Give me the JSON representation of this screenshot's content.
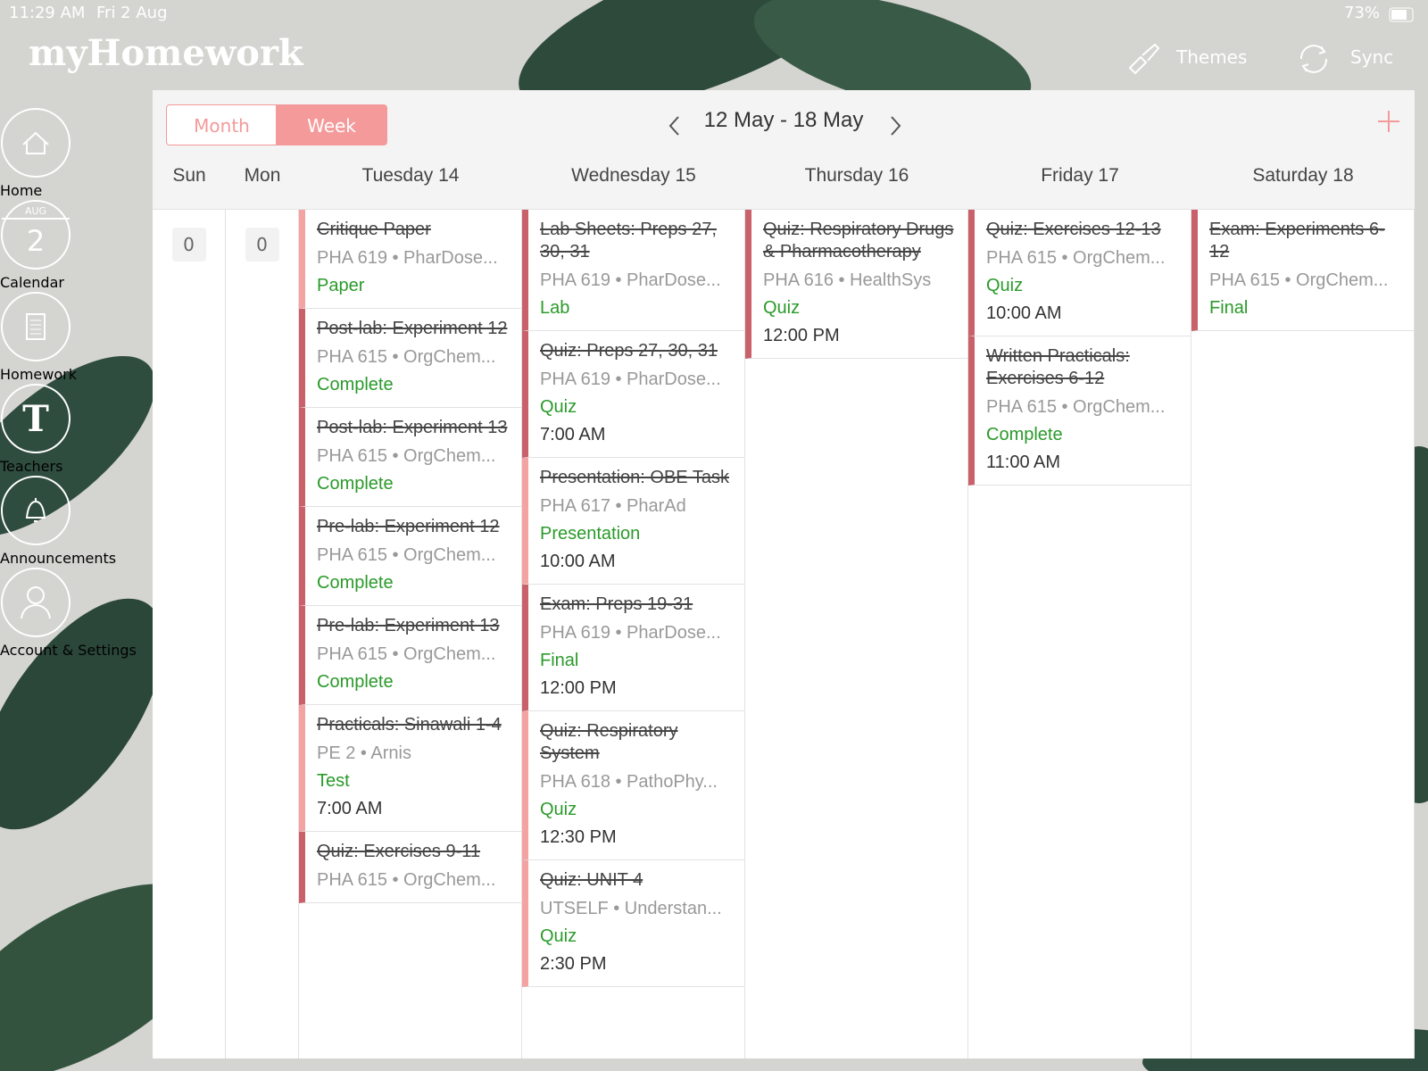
{
  "status_bar": {
    "time": "11:29 AM",
    "date": "Fri 2 Aug",
    "battery": "73%"
  },
  "header": {
    "title": "myHomework",
    "actions": [
      "Themes",
      "Sync"
    ]
  },
  "sidebar": [
    {
      "label": "Home",
      "icon": "home"
    },
    {
      "label": "Calendar",
      "icon": "calendar",
      "icon_month": "AUG",
      "icon_day": "2"
    },
    {
      "label": "Homework",
      "icon": "homework"
    },
    {
      "label": "Teachers",
      "icon": "teachers"
    },
    {
      "label": "Announcements",
      "icon": "bell"
    },
    {
      "label": "Account & Settings",
      "icon": "account"
    }
  ],
  "calendar": {
    "view_tabs": [
      "Month",
      "Week"
    ],
    "active_view": 1,
    "range": "12 May - 18 May",
    "days": [
      {
        "name": "Sun",
        "count": 0
      },
      {
        "name": "Mon",
        "count": 0
      },
      {
        "name": "Tuesday 14",
        "items": [
          {
            "title": "Critique Paper",
            "course": "PHA 619 • PharDose...",
            "type": "Paper",
            "color": "#f4a3a3"
          },
          {
            "title": "Post-lab: Experiment 12",
            "course": "PHA 615 • OrgChem...",
            "type": "Complete",
            "color": "#c9606a"
          },
          {
            "title": "Post-lab: Experiment 13",
            "course": "PHA 615 • OrgChem...",
            "type": "Complete",
            "color": "#c9606a"
          },
          {
            "title": "Pre-lab: Experiment 12",
            "course": "PHA 615 • OrgChem...",
            "type": "Complete",
            "color": "#c9606a"
          },
          {
            "title": "Pre-lab: Experiment 13",
            "course": "PHA 615 • OrgChem...",
            "type": "Complete",
            "color": "#c9606a"
          },
          {
            "title": "Practicals: Sinawali 1-4",
            "course": "PE 2 • Arnis",
            "type": "Test",
            "time": "7:00 AM",
            "color": "#f4a3a3"
          },
          {
            "title": "Quiz: Exercises 9-11",
            "course": "PHA 615 • OrgChem...",
            "color": "#c9606a"
          }
        ]
      },
      {
        "name": "Wednesday 15",
        "items": [
          {
            "title": "Lab Sheets: Preps 27, 30, 31",
            "course": "PHA 619 • PharDose...",
            "type": "Lab",
            "color": "#c9606a"
          },
          {
            "title": "Quiz: Preps 27, 30, 31",
            "course": "PHA 619 • PharDose...",
            "type": "Quiz",
            "time": "7:00 AM",
            "color": "#c9606a"
          },
          {
            "title": "Presentation: OBE Task",
            "course": "PHA 617 • PharAd",
            "type": "Presentation",
            "time": "10:00 AM",
            "color": "#f4a3a3"
          },
          {
            "title": "Exam: Preps 19-31",
            "course": "PHA 619 • PharDose...",
            "type": "Final",
            "time": "12:00 PM",
            "color": "#c9606a"
          },
          {
            "title": "Quiz: Respiratory System",
            "course": "PHA 618 • PathoPhy...",
            "type": "Quiz",
            "time": "12:30 PM",
            "color": "#f4a3a3"
          },
          {
            "title": "Quiz: UNIT 4",
            "course": "UTSELF • Understan...",
            "type": "Quiz",
            "time": "2:30 PM",
            "color": "#f4a3a3"
          }
        ]
      },
      {
        "name": "Thursday 16",
        "items": [
          {
            "title": "Quiz: Respiratory Drugs & Pharmacotherapy",
            "course": "PHA 616 • HealthSys",
            "type": "Quiz",
            "time": "12:00 PM",
            "color": "#c9606a"
          }
        ]
      },
      {
        "name": "Friday 17",
        "items": [
          {
            "title": "Quiz: Exercises 12-13",
            "course": "PHA 615 • OrgChem...",
            "type": "Quiz",
            "time": "10:00 AM",
            "color": "#c9606a"
          },
          {
            "title": "Written Practicals: Exercises 6-12",
            "course": "PHA 615 • OrgChem...",
            "type": "Complete",
            "time": "11:00 AM",
            "color": "#c9606a"
          }
        ]
      },
      {
        "name": "Saturday 18",
        "items": [
          {
            "title": "Exam: Experiments 6-12",
            "course": "PHA 615 • OrgChem...",
            "type": "Final",
            "color": "#c9606a"
          }
        ]
      }
    ]
  }
}
